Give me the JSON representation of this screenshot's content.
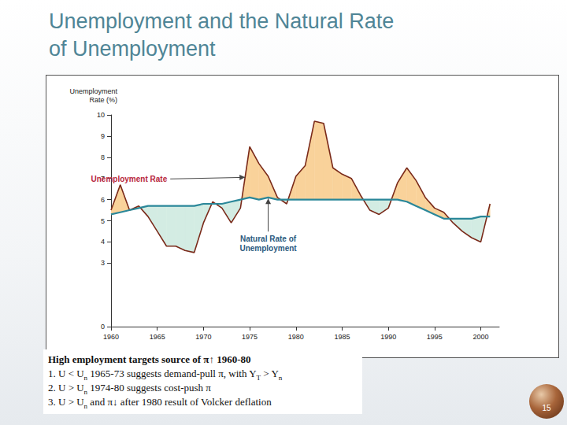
{
  "slide": {
    "title": "Unemployment and the Natural Rate\nof Unemployment",
    "notes": [
      [
        {
          "text": "High employment targets source of π↑ 1960-80"
        }
      ],
      [
        {
          "text": "1.  U < U"
        },
        {
          "text": "n",
          "sub": true
        },
        {
          "text": " 1965-73 suggests demand-pull π, with Y"
        },
        {
          "text": "T",
          "sub": true
        },
        {
          "text": " > Y"
        },
        {
          "text": "n",
          "sub": true
        }
      ],
      [
        {
          "text": "2.  U > U"
        },
        {
          "text": "n",
          "sub": true
        },
        {
          "text": " 1974-80 suggests cost-push π"
        }
      ],
      [
        {
          "text": "3.  U > U"
        },
        {
          "text": "n",
          "sub": true
        },
        {
          "text": " and π↓ after 1980 result of Volcker deflation"
        }
      ]
    ],
    "page_number": "15"
  },
  "chart_data": {
    "type": "line",
    "y_label": "Unemployment\nRate (%)",
    "x": [
      1960,
      1961,
      1962,
      1963,
      1964,
      1965,
      1966,
      1967,
      1968,
      1969,
      1970,
      1971,
      1972,
      1973,
      1974,
      1975,
      1976,
      1977,
      1978,
      1979,
      1980,
      1981,
      1982,
      1983,
      1984,
      1985,
      1986,
      1987,
      1988,
      1989,
      1990,
      1991,
      1992,
      1993,
      1994,
      1995,
      1996,
      1997,
      1998,
      1999,
      2000,
      2001
    ],
    "series": [
      {
        "name": "Unemployment Rate",
        "color": "#7a2a1a",
        "values": [
          5.5,
          6.7,
          5.5,
          5.7,
          5.2,
          4.5,
          3.8,
          3.8,
          3.6,
          3.5,
          4.9,
          5.9,
          5.6,
          4.9,
          5.6,
          8.5,
          7.7,
          7.1,
          6.1,
          5.8,
          7.1,
          7.6,
          9.7,
          9.6,
          7.5,
          7.2,
          7.0,
          6.2,
          5.5,
          5.3,
          5.6,
          6.8,
          7.5,
          6.9,
          6.1,
          5.6,
          5.4,
          4.9,
          4.5,
          4.2,
          4.0,
          5.8
        ]
      },
      {
        "name": "Natural Rate of Unemployment",
        "color": "#2a8799",
        "values": [
          5.3,
          5.4,
          5.5,
          5.6,
          5.7,
          5.7,
          5.7,
          5.7,
          5.7,
          5.7,
          5.8,
          5.8,
          5.8,
          5.9,
          6.0,
          6.1,
          6.0,
          6.1,
          6.0,
          6.0,
          6.0,
          6.0,
          6.0,
          6.0,
          6.0,
          6.0,
          6.0,
          6.0,
          6.0,
          6.0,
          6.0,
          6.0,
          5.9,
          5.7,
          5.5,
          5.3,
          5.1,
          5.1,
          5.1,
          5.1,
          5.2,
          5.2
        ]
      }
    ],
    "annotations": [
      {
        "text": "Unemployment Rate",
        "x": 1974.5,
        "y": 7.05,
        "position": "left"
      },
      {
        "text": "Natural Rate of\nUnemployment",
        "x": 1977,
        "y": 6.05,
        "position": "below"
      }
    ],
    "xlim": [
      1960,
      2002
    ],
    "xticks": [
      1960,
      1965,
      1970,
      1975,
      1980,
      1985,
      1990,
      1995,
      2000
    ],
    "ylim": [
      0,
      10
    ],
    "yticks": [
      0,
      3,
      4,
      5,
      6,
      7,
      8,
      9,
      10
    ],
    "grid": false
  }
}
